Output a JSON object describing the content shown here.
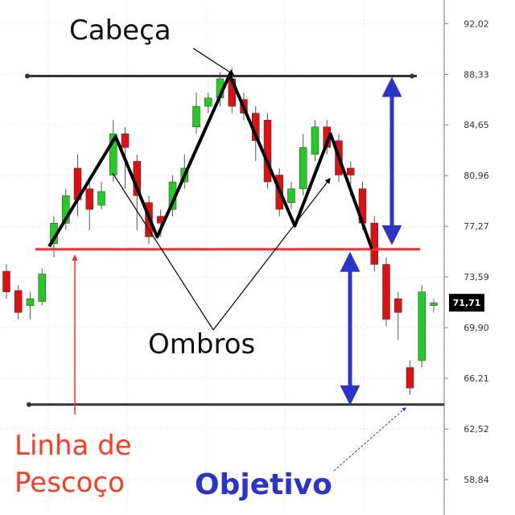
{
  "chart_data": {
    "type": "candlestick",
    "y_ticks": [
      "92,02",
      "88,33",
      "84,65",
      "80,96",
      "77,27",
      "73,59",
      "69,90",
      "66,21",
      "62,52",
      "58,84"
    ],
    "y_tick_values": [
      92.02,
      88.33,
      84.65,
      80.96,
      77.27,
      73.59,
      69.9,
      66.21,
      62.52,
      58.84
    ],
    "ylim": [
      56.5,
      93.5
    ],
    "grid": true,
    "last_price_label": "71,71",
    "last_price": 71.71,
    "candles": [
      {
        "o": 74.0,
        "c": 72.5,
        "h": 74.5,
        "l": 72.0
      },
      {
        "o": 72.6,
        "c": 71.0,
        "h": 73.0,
        "l": 70.5
      },
      {
        "o": 71.5,
        "c": 72.0,
        "h": 72.5,
        "l": 70.5
      },
      {
        "o": 71.8,
        "c": 73.8,
        "h": 74.2,
        "l": 71.5
      },
      {
        "o": 76.0,
        "c": 77.5,
        "h": 78.0,
        "l": 75.0
      },
      {
        "o": 77.5,
        "c": 79.5,
        "h": 80.0,
        "l": 77.0
      },
      {
        "o": 81.5,
        "c": 79.2,
        "h": 82.5,
        "l": 78.0
      },
      {
        "o": 80.0,
        "c": 78.5,
        "h": 80.5,
        "l": 77.0
      },
      {
        "o": 78.8,
        "c": 79.8,
        "h": 80.5,
        "l": 78.5
      },
      {
        "o": 81.0,
        "c": 84.0,
        "h": 85.0,
        "l": 80.5
      },
      {
        "o": 84.0,
        "c": 83.0,
        "h": 84.5,
        "l": 80.0
      },
      {
        "o": 82.0,
        "c": 79.5,
        "h": 82.5,
        "l": 77.0
      },
      {
        "o": 79.0,
        "c": 76.5,
        "h": 79.5,
        "l": 76.0
      },
      {
        "o": 78.0,
        "c": 77.5,
        "h": 78.5,
        "l": 76.5
      },
      {
        "o": 78.5,
        "c": 80.5,
        "h": 81.0,
        "l": 78.0
      },
      {
        "o": 80.5,
        "c": 81.5,
        "h": 82.5,
        "l": 80.0
      },
      {
        "o": 84.5,
        "c": 86.0,
        "h": 87.0,
        "l": 84.0
      },
      {
        "o": 86.0,
        "c": 86.6,
        "h": 87.0,
        "l": 85.5
      },
      {
        "o": 86.6,
        "c": 88.0,
        "h": 88.5,
        "l": 86.0
      },
      {
        "o": 88.0,
        "c": 86.0,
        "h": 88.8,
        "l": 85.5
      },
      {
        "o": 86.5,
        "c": 85.5,
        "h": 87.0,
        "l": 85.0
      },
      {
        "o": 85.5,
        "c": 83.5,
        "h": 86.0,
        "l": 82.0
      },
      {
        "o": 85.0,
        "c": 80.5,
        "h": 85.5,
        "l": 80.0
      },
      {
        "o": 81.0,
        "c": 78.5,
        "h": 81.5,
        "l": 78.0
      },
      {
        "o": 79.0,
        "c": 80.0,
        "h": 80.5,
        "l": 78.5
      },
      {
        "o": 80.0,
        "c": 83.0,
        "h": 84.0,
        "l": 79.5
      },
      {
        "o": 82.5,
        "c": 84.5,
        "h": 85.0,
        "l": 82.0
      },
      {
        "o": 84.5,
        "c": 83.0,
        "h": 85.0,
        "l": 82.5
      },
      {
        "o": 83.5,
        "c": 81.0,
        "h": 84.0,
        "l": 80.5
      },
      {
        "o": 81.5,
        "c": 81.0,
        "h": 82.0,
        "l": 79.5
      },
      {
        "o": 80.0,
        "c": 77.5,
        "h": 80.5,
        "l": 77.0
      },
      {
        "o": 77.5,
        "c": 74.5,
        "h": 78.0,
        "l": 74.0
      },
      {
        "o": 74.5,
        "c": 70.5,
        "h": 75.0,
        "l": 70.0
      },
      {
        "o": 72.0,
        "c": 71.0,
        "h": 72.5,
        "l": 69.0
      },
      {
        "o": 67.0,
        "c": 65.5,
        "h": 67.5,
        "l": 65.0
      },
      {
        "o": 67.5,
        "c": 72.5,
        "h": 73.0,
        "l": 67.0
      },
      {
        "o": 71.5,
        "c": 71.7,
        "h": 72.0,
        "l": 71.0
      }
    ],
    "pattern_line": [
      {
        "i": 3.6,
        "p": 75.8
      },
      {
        "i": 9.2,
        "p": 83.8
      },
      {
        "i": 12.7,
        "p": 76.5
      },
      {
        "i": 18.8,
        "p": 88.3
      },
      {
        "i": 24.3,
        "p": 77.3
      },
      {
        "i": 27.3,
        "p": 84.0
      },
      {
        "i": 30.8,
        "p": 75.6
      }
    ],
    "neckline": 75.6,
    "head_line": 88.2,
    "target_line": 64.3,
    "annotations": {
      "head": "Cabeça",
      "shoulders": "Ombros",
      "neckline_line1": "Linha de",
      "neckline_line2": "Pescoço",
      "target": "Objetivo"
    },
    "colors": {
      "up": "#22cc22",
      "down": "#dd1111",
      "pattern": "#000000",
      "neckline": "#ff2b2b",
      "target_arrow": "#2b34c9",
      "head_line": "#333333",
      "target_line": "#333333",
      "grid": "#dddddd",
      "axis": "#777777"
    }
  }
}
